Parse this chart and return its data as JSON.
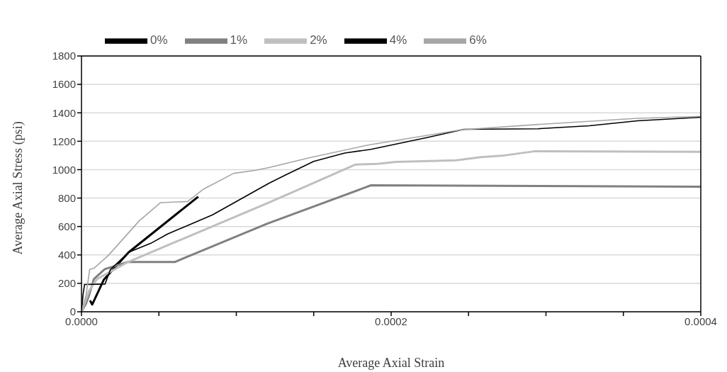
{
  "chart_data": {
    "type": "line",
    "xlabel": "Average Axial Strain",
    "ylabel": "Average Axial Stress (psi)",
    "xlim": [
      0,
      0.0004
    ],
    "ylim": [
      0,
      1800
    ],
    "xticks": [
      {
        "value": 0,
        "label": "0.0000"
      },
      {
        "value": 5e-05,
        "label": null
      },
      {
        "value": 0.0001,
        "label": null
      },
      {
        "value": 0.00015,
        "label": null
      },
      {
        "value": 0.0002,
        "label": "0.0002"
      },
      {
        "value": 0.00025,
        "label": null
      },
      {
        "value": 0.0003,
        "label": null
      },
      {
        "value": 0.00035,
        "label": null
      },
      {
        "value": 0.0004,
        "label": "0.0004"
      }
    ],
    "yticks": [
      0,
      200,
      400,
      600,
      800,
      1000,
      1200,
      1400,
      1600,
      1800
    ],
    "grid": "y",
    "legend": "top left",
    "marker": "none",
    "line_style": "solid",
    "series": [
      {
        "name": "0%",
        "color": "#000000",
        "x": [
          5.5e-06,
          6.9e-06,
          1.45e-05,
          3.05e-05,
          7.54e-05
        ],
        "values": [
          80,
          51,
          227,
          419,
          810
        ]
      },
      {
        "name": "1%",
        "color": "#808080",
        "x": [
          0,
          3e-06,
          5e-06,
          8e-06,
          1.5e-05,
          3e-05,
          6.02e-05,
          0.00012,
          0.000187,
          0.0004
        ],
        "values": [
          0,
          60,
          120,
          230,
          300,
          350,
          350,
          620,
          890,
          880
        ]
      },
      {
        "name": "2%",
        "color": "#bfbfbf",
        "x": [
          0,
          5e-06,
          1e-05,
          2e-05,
          3e-05,
          0.000121,
          0.000177,
          0.000191,
          0.000203,
          0.000242,
          0.000258,
          0.000273,
          0.000293,
          0.0004
        ],
        "values": [
          0,
          150,
          230,
          290,
          350,
          768,
          1036,
          1041,
          1054,
          1066,
          1088,
          1100,
          1130,
          1125
        ]
      },
      {
        "name": "4%",
        "color": "#000000",
        "x": [
          0,
          1e-06,
          2e-06,
          1.52e-05,
          1.87e-05,
          3.05e-05,
          4.48e-05,
          5.56e-05,
          8.46e-05,
          0.000121,
          0.000132,
          0.00015,
          0.00017,
          0.000187,
          0.000224,
          0.000247,
          0.000295,
          0.000328,
          0.000359,
          0.0004
        ],
        "values": [
          0,
          120,
          192,
          195,
          298,
          419,
          482,
          547,
          682,
          904,
          964,
          1058,
          1117,
          1143,
          1228,
          1284,
          1288,
          1309,
          1344,
          1369
        ]
      },
      {
        "name": "6%",
        "color": "#a6a6a6",
        "x": [
          0,
          3e-06,
          5.3e-06,
          8.2e-06,
          1.74e-05,
          3.73e-05,
          5.11e-05,
          6.86e-05,
          7.85e-05,
          9.83e-05,
          0.000112,
          0.000121,
          0.000147,
          0.000185,
          0.000245,
          0.000295,
          0.000359,
          0.0004
        ],
        "values": [
          0,
          120,
          298,
          307,
          397,
          640,
          768,
          776,
          861,
          974,
          995,
          1015,
          1083,
          1173,
          1280,
          1318,
          1361,
          1375
        ]
      }
    ]
  }
}
